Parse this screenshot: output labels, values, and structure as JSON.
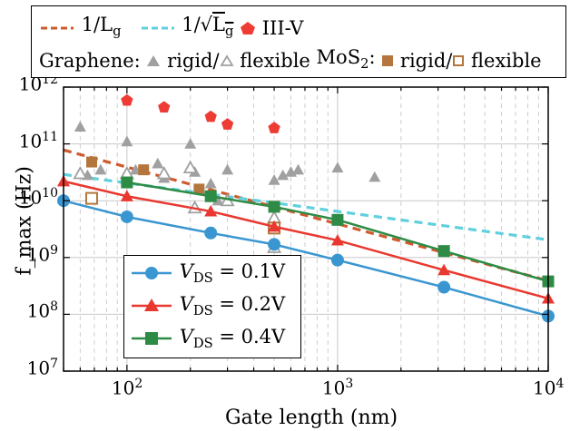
{
  "chart_data": {
    "type": "line",
    "xlabel": "Gate length (nm)",
    "ylabel": "f_max (Hz)",
    "xscale": "log",
    "yscale": "log",
    "xlim": [
      50,
      10000
    ],
    "ylim": [
      10000000.0,
      1000000000000.0
    ],
    "grid": true,
    "xticks": [
      {
        "value": 100,
        "base": "10",
        "exp": "2"
      },
      {
        "value": 1000,
        "base": "10",
        "exp": "3"
      },
      {
        "value": 10000,
        "base": "10",
        "exp": "4"
      }
    ],
    "yticks": [
      {
        "value": 10000000.0,
        "base": "10",
        "exp": "7"
      },
      {
        "value": 100000000.0,
        "base": "10",
        "exp": "8"
      },
      {
        "value": 1000000000.0,
        "base": "10",
        "exp": "9"
      },
      {
        "value": 10000000000.0,
        "base": "10",
        "exp": "10"
      },
      {
        "value": 100000000000.0,
        "base": "10",
        "exp": "11"
      },
      {
        "value": 1000000000000.0,
        "base": "10",
        "exp": "12"
      }
    ],
    "legend_top": {
      "inv_l_label": "1/L",
      "inv_l_sub": "g",
      "inv_sqrt_l_label_a": "1/",
      "inv_sqrt_l_label_b": "L",
      "inv_sqrt_l_sub": "g",
      "iii_v_label": "III-V",
      "graphene_label": "Graphene:",
      "rigid_label": "rigid/",
      "flexible_label": "flexible",
      "mos2_label_a": "MoS",
      "mos2_label_sub": "2",
      "mos2_label_b": ":",
      "mos2_rigid_label": "rigid/",
      "mos2_flexible_label": "flexible"
    },
    "legend_position": "bottom-left",
    "series": [
      {
        "name": "V_DS = 0.1V",
        "label_v": "V",
        "label_sub": "DS",
        "label_rest": " = 0.1V",
        "color": "#3a96d0",
        "marker": "circle",
        "x": [
          50,
          100,
          250,
          500,
          1000,
          3200,
          10000
        ],
        "y": [
          10000000000.0,
          5200000000.0,
          2700000000.0,
          1700000000.0,
          900000000.0,
          300000000.0,
          93000000.0
        ]
      },
      {
        "name": "V_DS = 0.2V",
        "label_v": "V",
        "label_sub": "DS",
        "label_rest": " = 0.2V",
        "color": "#e8382f",
        "marker": "triangle",
        "x": [
          50,
          100,
          250,
          500,
          1000,
          3200,
          10000
        ],
        "y": [
          22000000000.0,
          12000000000.0,
          6500000000.0,
          3500000000.0,
          2000000000.0,
          600000000.0,
          190000000.0
        ]
      },
      {
        "name": "V_DS = 0.4V",
        "label_v": "V",
        "label_sub": "DS",
        "label_rest": " = 0.4V",
        "color": "#2e8b45",
        "marker": "square",
        "x": [
          100,
          250,
          500,
          1000,
          3200,
          10000
        ],
        "y": [
          21000000000.0,
          12000000000.0,
          7800000000.0,
          4600000000.0,
          1300000000.0,
          380000000.0
        ]
      }
    ],
    "reference_lines": [
      {
        "name": "1/Lg",
        "color": "#cf5a2e",
        "style": "dashed",
        "x": [
          50,
          10000
        ],
        "y": [
          78000000000.0,
          390000000.0
        ]
      },
      {
        "name": "1/sqrt(Lg)",
        "color": "#5fd0dd",
        "style": "dashed",
        "x": [
          50,
          10000
        ],
        "y": [
          29000000000.0,
          2050000000.0
        ]
      }
    ],
    "scatter_sets": [
      {
        "name": "III-V",
        "color": "#ee3b33",
        "marker": "pentagon",
        "filled": true,
        "points": [
          [
            100,
            580000000000.0
          ],
          [
            150,
            440000000000.0
          ],
          [
            250,
            300000000000.0
          ],
          [
            300,
            220000000000.0
          ],
          [
            500,
            190000000000.0
          ]
        ]
      },
      {
        "name": "Graphene rigid",
        "color": "#a0a0a0",
        "marker": "triangle",
        "filled": true,
        "points": [
          [
            60,
            200000000000.0
          ],
          [
            65,
            28000000000.0
          ],
          [
            75,
            35000000000.0
          ],
          [
            100,
            110000000000.0
          ],
          [
            110,
            35000000000.0
          ],
          [
            140,
            45000000000.0
          ],
          [
            150,
            25000000000.0
          ],
          [
            200,
            100000000000.0
          ],
          [
            210,
            32000000000.0
          ],
          [
            250,
            20000000000.0
          ],
          [
            270,
            10000000000.0
          ],
          [
            300,
            35000000000.0
          ],
          [
            500,
            23000000000.0
          ],
          [
            550,
            28000000000.0
          ],
          [
            600,
            32000000000.0
          ],
          [
            650,
            35000000000.0
          ],
          [
            1000,
            38000000000.0
          ],
          [
            1500,
            26000000000.0
          ]
        ]
      },
      {
        "name": "Graphene flexible",
        "color": "#a0a0a0",
        "marker": "triangle",
        "filled": false,
        "points": [
          [
            60,
            30000000000.0
          ],
          [
            100,
            30000000000.0
          ],
          [
            150,
            30000000000.0
          ],
          [
            200,
            38000000000.0
          ],
          [
            210,
            7500000000.0
          ],
          [
            300,
            10000000000.0
          ],
          [
            500,
            1500000000.0
          ],
          [
            500,
            5000000000.0
          ]
        ]
      },
      {
        "name": "MoS2 rigid",
        "color": "#b5763d",
        "marker": "square",
        "filled": true,
        "points": [
          [
            68,
            48000000000.0
          ],
          [
            120,
            35000000000.0
          ],
          [
            220,
            16000000000.0
          ]
        ]
      },
      {
        "name": "MoS2 flexible",
        "color": "#b5763d",
        "marker": "square",
        "filled": false,
        "points": [
          [
            68,
            11000000000.0
          ],
          [
            500,
            3300000000.0
          ]
        ]
      }
    ]
  }
}
